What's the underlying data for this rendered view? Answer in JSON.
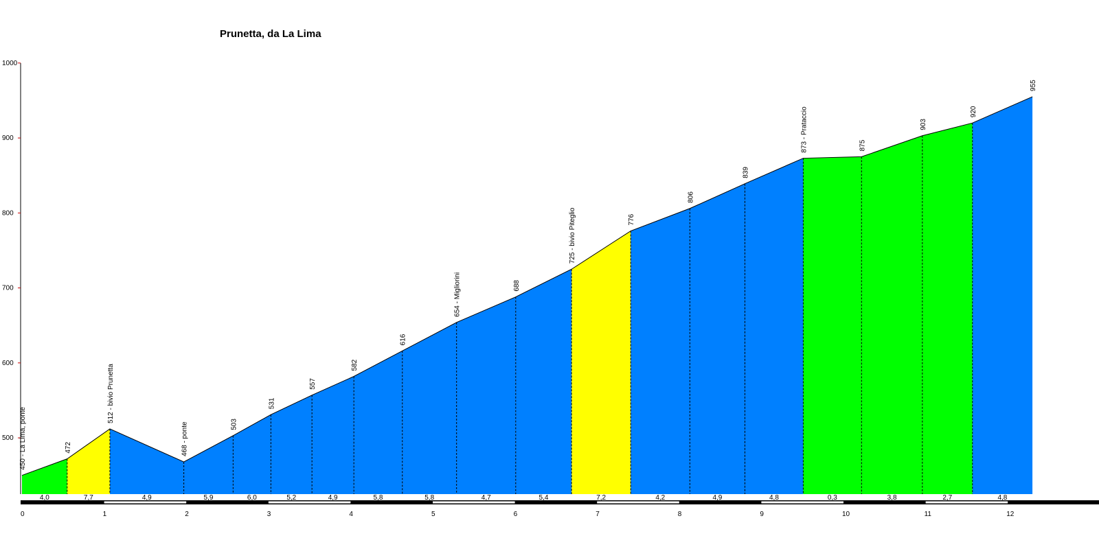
{
  "chart_data": {
    "type": "area",
    "title": "Prunetta, da La Lima",
    "xlabel": "",
    "ylabel": "",
    "xlim": [
      0,
      13
    ],
    "ylim": [
      425,
      1000
    ],
    "x_ticks": [
      0,
      1,
      2,
      3,
      4,
      5,
      6,
      7,
      8,
      9,
      10,
      11,
      12
    ],
    "y_ticks": [
      500,
      600,
      700,
      800,
      900,
      1000
    ],
    "grid": false,
    "points": [
      {
        "x": 0.0,
        "y": 450,
        "label": "450 - La Lima, ponte"
      },
      {
        "x": 0.55,
        "y": 472,
        "label": "472"
      },
      {
        "x": 1.07,
        "y": 512,
        "label": "512 - bivio Prunetta"
      },
      {
        "x": 1.97,
        "y": 468,
        "label": "468 - ponte"
      },
      {
        "x": 2.57,
        "y": 503,
        "label": "503"
      },
      {
        "x": 3.03,
        "y": 531,
        "label": "531"
      },
      {
        "x": 3.53,
        "y": 557,
        "label": "557"
      },
      {
        "x": 4.04,
        "y": 582,
        "label": "582"
      },
      {
        "x": 4.63,
        "y": 616,
        "label": "616"
      },
      {
        "x": 5.29,
        "y": 654,
        "label": "654 - Migliorini"
      },
      {
        "x": 6.01,
        "y": 688,
        "label": "688"
      },
      {
        "x": 6.69,
        "y": 725,
        "label": "725 - bivio Piteglio"
      },
      {
        "x": 7.41,
        "y": 776,
        "label": "776"
      },
      {
        "x": 8.13,
        "y": 806,
        "label": "806"
      },
      {
        "x": 8.8,
        "y": 839,
        "label": "839"
      },
      {
        "x": 9.51,
        "y": 873,
        "label": "873 - Prataccio"
      },
      {
        "x": 10.22,
        "y": 875,
        "label": "875"
      },
      {
        "x": 10.96,
        "y": 903,
        "label": "903"
      },
      {
        "x": 11.57,
        "y": 920,
        "label": "920"
      },
      {
        "x": 12.3,
        "y": 955,
        "label": "955"
      }
    ],
    "segment_grades": [
      "4,0",
      "7,7",
      "4,9",
      "5,9",
      "6,0",
      "5,2",
      "4,9",
      "5,8",
      "5,8",
      "4,7",
      "5,4",
      "7,2",
      "4,2",
      "4,9",
      "4,8",
      "0,3",
      "3,8",
      "2,7",
      "4,8"
    ],
    "segment_colors": [
      "#00ff00",
      "#ffff00",
      "#0080ff",
      "#0080ff",
      "#0080ff",
      "#0080ff",
      "#0080ff",
      "#0080ff",
      "#0080ff",
      "#0080ff",
      "#0080ff",
      "#ffff00",
      "#0080ff",
      "#0080ff",
      "#0080ff",
      "#00ff00",
      "#00ff00",
      "#00ff00",
      "#0080ff"
    ],
    "colors": {
      "axis": "#000000",
      "tick": "#cc0000"
    }
  }
}
